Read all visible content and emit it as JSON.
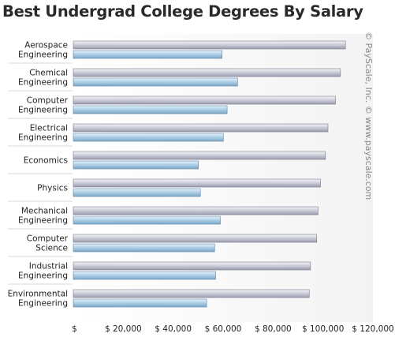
{
  "chart_data": {
    "type": "bar",
    "orientation": "horizontal",
    "title": "Best Undergrad College Degrees By Salary",
    "watermark": "© PayScale, Inc. © www.payscale.com",
    "categories": [
      [
        "Aerospace",
        "Engineering"
      ],
      [
        "Chemical",
        "Engineering"
      ],
      [
        "Computer",
        "Engineering"
      ],
      [
        "Electrical",
        "Engineering"
      ],
      [
        "Economics"
      ],
      [
        "Physics"
      ],
      [
        "Mechanical",
        "Engineering"
      ],
      [
        "Computer",
        "Science"
      ],
      [
        "Industrial",
        "Engineering"
      ],
      [
        "Environmental",
        "Engineering"
      ]
    ],
    "series": [
      {
        "values": [
          109000,
          107000,
          105000,
          102000,
          101000,
          99000,
          98000,
          97500,
          95000,
          94500
        ],
        "color": "#c9cad6"
      },
      {
        "values": [
          59600,
          65800,
          61600,
          60100,
          50100,
          50900,
          58900,
          56600,
          57000,
          53400
        ],
        "color": "#a9cde6"
      }
    ],
    "xlim": [
      0,
      120000
    ],
    "xticks": [
      0,
      20000,
      40000,
      60000,
      80000,
      100000,
      120000
    ],
    "xtick_labels": [
      "$",
      "$ 20,000",
      "$ 40,000",
      "$ 60,000",
      "$ 80,000",
      "$ 100,000",
      "$ 120,000"
    ],
    "grid": false,
    "legend": "none"
  }
}
